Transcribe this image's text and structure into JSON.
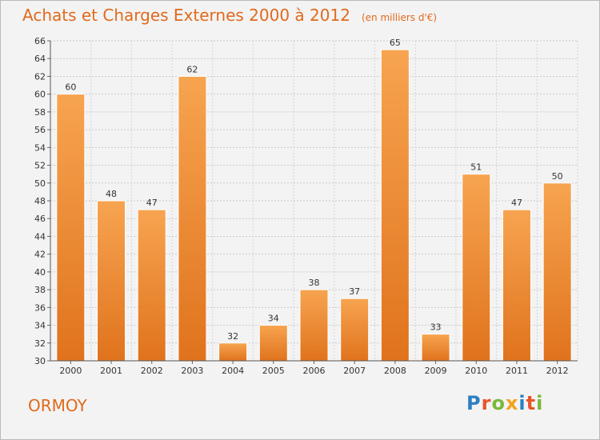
{
  "chart_data": {
    "type": "bar",
    "title": "Achats et Charges Externes 2000 à 2012",
    "subtitle": "(en milliers d'€)",
    "categories": [
      "2000",
      "2001",
      "2002",
      "2003",
      "2004",
      "2005",
      "2006",
      "2007",
      "2008",
      "2009",
      "2010",
      "2011",
      "2012"
    ],
    "values": [
      60,
      48,
      47,
      62,
      32,
      34,
      38,
      37,
      65,
      33,
      51,
      47,
      50
    ],
    "xlabel": "",
    "ylabel": "",
    "ylim": [
      30,
      66
    ],
    "yticks": [
      30,
      32,
      34,
      36,
      38,
      40,
      42,
      44,
      46,
      48,
      50,
      52,
      54,
      56,
      58,
      60,
      62,
      64,
      66
    ],
    "grid": true,
    "bar_color": "#f0852b"
  },
  "footer": {
    "place": "ORMOY",
    "logo": "Proxiti"
  }
}
